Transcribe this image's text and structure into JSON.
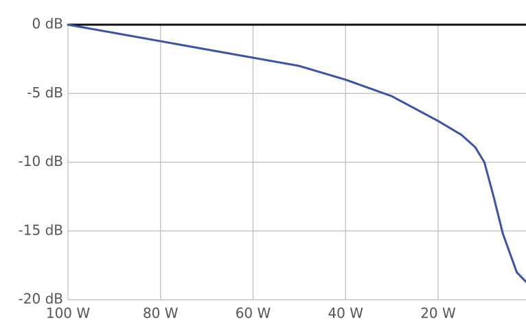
{
  "chart_data": {
    "type": "line",
    "title": "",
    "xlabel": "",
    "ylabel": "",
    "x_reversed": true,
    "xlim": [
      100,
      1
    ],
    "ylim": [
      -20,
      0
    ],
    "x_ticks": [
      {
        "value": 100,
        "label": "100 W"
      },
      {
        "value": 80,
        "label": "80 W"
      },
      {
        "value": 60,
        "label": "60 W"
      },
      {
        "value": 40,
        "label": "40 W"
      },
      {
        "value": 20,
        "label": "20 W"
      }
    ],
    "y_ticks": [
      {
        "value": 0,
        "label": "0 dB"
      },
      {
        "value": -5,
        "label": "-5 dB"
      },
      {
        "value": -10,
        "label": "-10 dB"
      },
      {
        "value": -15,
        "label": "-15 dB"
      },
      {
        "value": -20,
        "label": "-20 dB"
      }
    ],
    "grid": true,
    "reference_line": {
      "y": 0,
      "color": "#111111"
    },
    "series": [
      {
        "color": "#3a52a8",
        "points": [
          {
            "x": 100,
            "y": 0.0
          },
          {
            "x": 90,
            "y": -0.6
          },
          {
            "x": 80,
            "y": -1.2
          },
          {
            "x": 70,
            "y": -1.8
          },
          {
            "x": 60,
            "y": -2.4
          },
          {
            "x": 50,
            "y": -3.0
          },
          {
            "x": 40,
            "y": -4.0
          },
          {
            "x": 30,
            "y": -5.2
          },
          {
            "x": 20,
            "y": -7.0
          },
          {
            "x": 15,
            "y": -8.0
          },
          {
            "x": 12,
            "y": -8.9
          },
          {
            "x": 10,
            "y": -10.0
          },
          {
            "x": 8,
            "y": -12.5
          },
          {
            "x": 6,
            "y": -15.2
          },
          {
            "x": 3,
            "y": -18.0
          },
          {
            "x": 1,
            "y": -18.7
          }
        ]
      }
    ]
  }
}
